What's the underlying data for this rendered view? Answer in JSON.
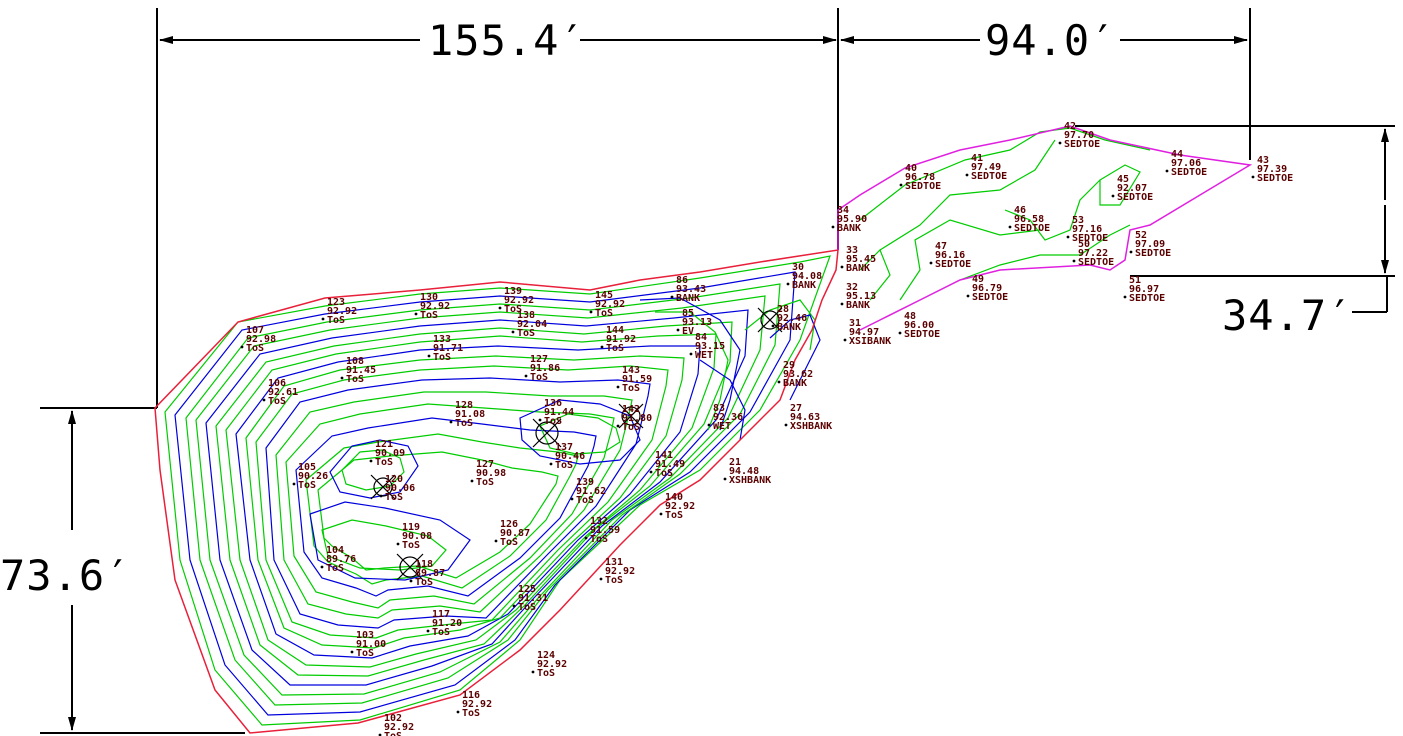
{
  "dimensions": {
    "top_left": "155.4′",
    "top_right": "94.0′",
    "right": "34.7′",
    "left": "73.6′"
  },
  "colors": {
    "boundary_main": "#e8203a",
    "boundary_upper": "#e020e0",
    "contour_green": "#00cc00",
    "contour_blue": "#0000dd",
    "label": "#5a0000",
    "dimension": "#000000"
  },
  "survey_points": [
    {
      "num": "107",
      "elev": "92.98",
      "desc": "ToS"
    },
    {
      "num": "123",
      "elev": "92.92",
      "desc": "ToS"
    },
    {
      "num": "130",
      "elev": "92.92",
      "desc": "ToS"
    },
    {
      "num": "139",
      "elev": "92.92",
      "desc": "ToS"
    },
    {
      "num": "145",
      "elev": "92.92",
      "desc": "ToS"
    },
    {
      "num": "86",
      "elev": "93.43",
      "desc": "BANK"
    },
    {
      "num": "30",
      "elev": "94.08",
      "desc": "BANK"
    },
    {
      "num": "133",
      "elev": "91.71",
      "desc": "ToS"
    },
    {
      "num": "138",
      "elev": "92.04",
      "desc": "ToS"
    },
    {
      "num": "144",
      "elev": "91.92",
      "desc": "ToS"
    },
    {
      "num": "85",
      "elev": "93.13",
      "desc": "EV"
    },
    {
      "num": "84",
      "elev": "93.15",
      "desc": "WET"
    },
    {
      "num": "28",
      "elev": "92.46",
      "desc": "BANK"
    },
    {
      "num": "106",
      "elev": "92.61",
      "desc": "ToS"
    },
    {
      "num": "108",
      "elev": "91.45",
      "desc": "ToS"
    },
    {
      "num": "127",
      "elev": "91.86",
      "desc": "ToS"
    },
    {
      "num": "143",
      "elev": "91.59",
      "desc": "ToS"
    },
    {
      "num": "29",
      "elev": "93.62",
      "desc": "BANK"
    },
    {
      "num": "128",
      "elev": "91.08",
      "desc": "ToS"
    },
    {
      "num": "136",
      "elev": "91.44",
      "desc": "ToS"
    },
    {
      "num": "142",
      "elev": "91.80",
      "desc": "ToS"
    },
    {
      "num": "83",
      "elev": "92.36",
      "desc": "WET"
    },
    {
      "num": "27",
      "elev": "94.63",
      "desc": "XSHBANK"
    },
    {
      "num": "121",
      "elev": "90.09",
      "desc": "ToS"
    },
    {
      "num": "137",
      "elev": "90.46",
      "desc": "ToS"
    },
    {
      "num": "105",
      "elev": "90.26",
      "desc": "ToS"
    },
    {
      "num": "120",
      "elev": "90.06",
      "desc": "ToS"
    },
    {
      "num": "127",
      "elev": "90.98",
      "desc": "ToS"
    },
    {
      "num": "141",
      "elev": "91.49",
      "desc": "ToS"
    },
    {
      "num": "21",
      "elev": "94.48",
      "desc": "XSHBANK"
    },
    {
      "num": "139",
      "elev": "91.62",
      "desc": "ToS"
    },
    {
      "num": "140",
      "elev": "92.92",
      "desc": "ToS"
    },
    {
      "num": "119",
      "elev": "90.08",
      "desc": "ToS"
    },
    {
      "num": "126",
      "elev": "90.87",
      "desc": "ToS"
    },
    {
      "num": "132",
      "elev": "91.59",
      "desc": "ToS"
    },
    {
      "num": "104",
      "elev": "89.76",
      "desc": "ToS"
    },
    {
      "num": "118",
      "elev": "89.87",
      "desc": "ToS"
    },
    {
      "num": "131",
      "elev": "92.92",
      "desc": "ToS"
    },
    {
      "num": "125",
      "elev": "91.31",
      "desc": "ToS"
    },
    {
      "num": "117",
      "elev": "91.20",
      "desc": "ToS"
    },
    {
      "num": "103",
      "elev": "91.00",
      "desc": "ToS"
    },
    {
      "num": "124",
      "elev": "92.92",
      "desc": "ToS"
    },
    {
      "num": "116",
      "elev": "92.92",
      "desc": "ToS"
    },
    {
      "num": "102",
      "elev": "92.92",
      "desc": "ToS"
    },
    {
      "num": "34",
      "elev": "95.90",
      "desc": "BANK"
    },
    {
      "num": "33",
      "elev": "95.45",
      "desc": "BANK"
    },
    {
      "num": "32",
      "elev": "95.13",
      "desc": "BANK"
    },
    {
      "num": "31",
      "elev": "94.97",
      "desc": "XSIBANK"
    },
    {
      "num": "40",
      "elev": "96.78",
      "desc": "SEDTOE"
    },
    {
      "num": "41",
      "elev": "97.49",
      "desc": "SEDTOE"
    },
    {
      "num": "42",
      "elev": "97.70",
      "desc": "SEDTOE"
    },
    {
      "num": "44",
      "elev": "97.06",
      "desc": "SEDTOE"
    },
    {
      "num": "43",
      "elev": "97.39",
      "desc": "SEDTOE"
    },
    {
      "num": "45",
      "elev": "92.07",
      "desc": "SEDTOE"
    },
    {
      "num": "46",
      "elev": "96.58",
      "desc": "SEDTOE"
    },
    {
      "num": "53",
      "elev": "97.16",
      "desc": "SEDTOE"
    },
    {
      "num": "47",
      "elev": "96.16",
      "desc": "SEDTOE"
    },
    {
      "num": "50",
      "elev": "97.22",
      "desc": "SEDTOE"
    },
    {
      "num": "52",
      "elev": "97.09",
      "desc": "SEDTOE"
    },
    {
      "num": "49",
      "elev": "96.79",
      "desc": "SEDTOE"
    },
    {
      "num": "51",
      "elev": "96.97",
      "desc": "SEDTOE"
    },
    {
      "num": "48",
      "elev": "96.00",
      "desc": "SEDTOE"
    }
  ]
}
